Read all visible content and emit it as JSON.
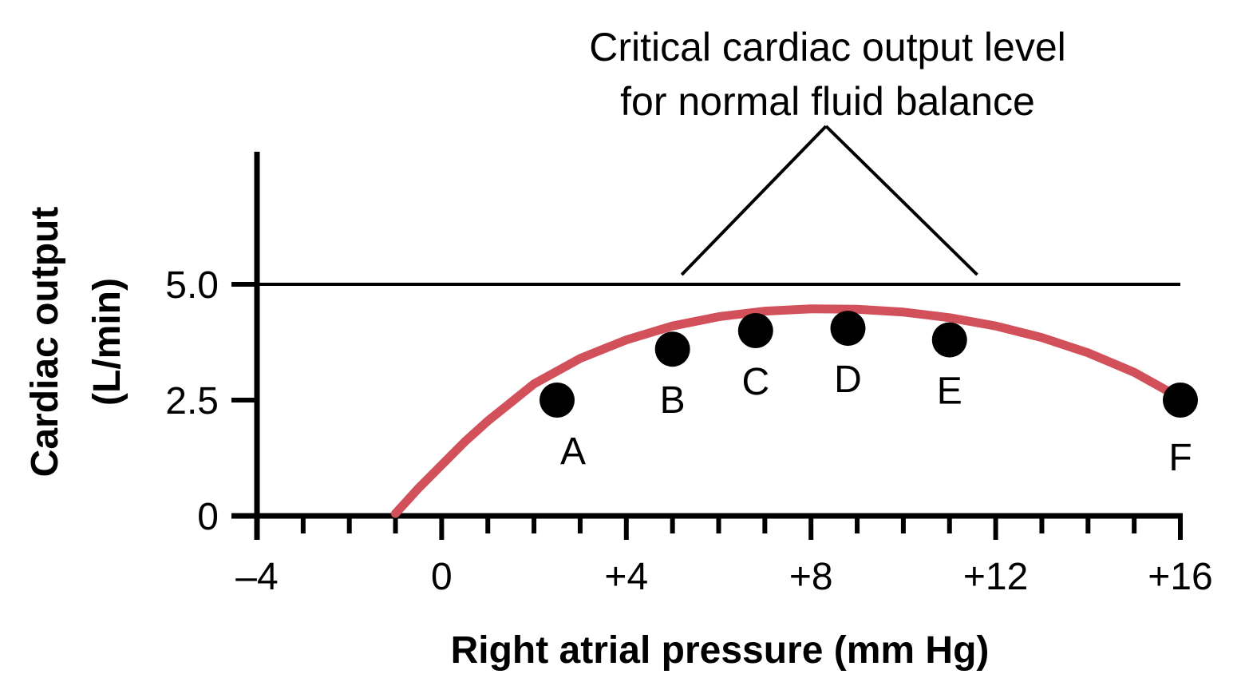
{
  "chart_data": {
    "type": "line",
    "title": "",
    "xlabel": "Right atrial pressure (mm Hg)",
    "ylabel": [
      "Cardiac output",
      "(L/min)"
    ],
    "xlim": [
      -4,
      16
    ],
    "ylim": [
      0,
      6.5
    ],
    "x_ticks": [
      {
        "value": -4,
        "label": "–4"
      },
      {
        "value": 0,
        "label": "0"
      },
      {
        "value": 4,
        "label": "+4"
      },
      {
        "value": 8,
        "label": "+8"
      },
      {
        "value": 12,
        "label": "+12"
      },
      {
        "value": 16,
        "label": "+16"
      }
    ],
    "x_minor_step": 1,
    "y_ticks": [
      {
        "value": 0,
        "label": "0"
      },
      {
        "value": 2.5,
        "label": "2.5"
      },
      {
        "value": 5.0,
        "label": "5.0"
      }
    ],
    "reference_line": {
      "y": 5.0,
      "x_end": 16
    },
    "annotation": {
      "lines": [
        "Critical cardiac output level",
        "for normal fluid balance"
      ],
      "pointer_targets_x": [
        5.2,
        11.6
      ]
    },
    "series": [
      {
        "color": "#d2505a",
        "x": [
          -1.0,
          -0.5,
          0.0,
          0.5,
          1.0,
          1.5,
          2.0,
          3.0,
          4.0,
          5.0,
          6.0,
          7.0,
          8.0,
          9.0,
          10.0,
          11.0,
          12.0,
          13.0,
          14.0,
          15.0,
          15.9
        ],
        "y": [
          0.05,
          0.6,
          1.1,
          1.6,
          2.05,
          2.45,
          2.85,
          3.4,
          3.8,
          4.1,
          4.3,
          4.42,
          4.47,
          4.46,
          4.4,
          4.28,
          4.1,
          3.85,
          3.52,
          3.1,
          2.6
        ]
      }
    ],
    "points": [
      {
        "label": "A",
        "x": 2.5,
        "y": 2.5,
        "label_pos": "below-right"
      },
      {
        "label": "B",
        "x": 5.0,
        "y": 3.6,
        "label_pos": "below"
      },
      {
        "label": "C",
        "x": 6.8,
        "y": 4.0,
        "label_pos": "below"
      },
      {
        "label": "D",
        "x": 8.8,
        "y": 4.05,
        "label_pos": "below"
      },
      {
        "label": "E",
        "x": 11.0,
        "y": 3.8,
        "label_pos": "below"
      },
      {
        "label": "F",
        "x": 16.0,
        "y": 2.5,
        "label_pos": "below"
      }
    ],
    "colors": {
      "axis": "#000000",
      "curve": "#d2505a",
      "points": "#000000"
    }
  }
}
